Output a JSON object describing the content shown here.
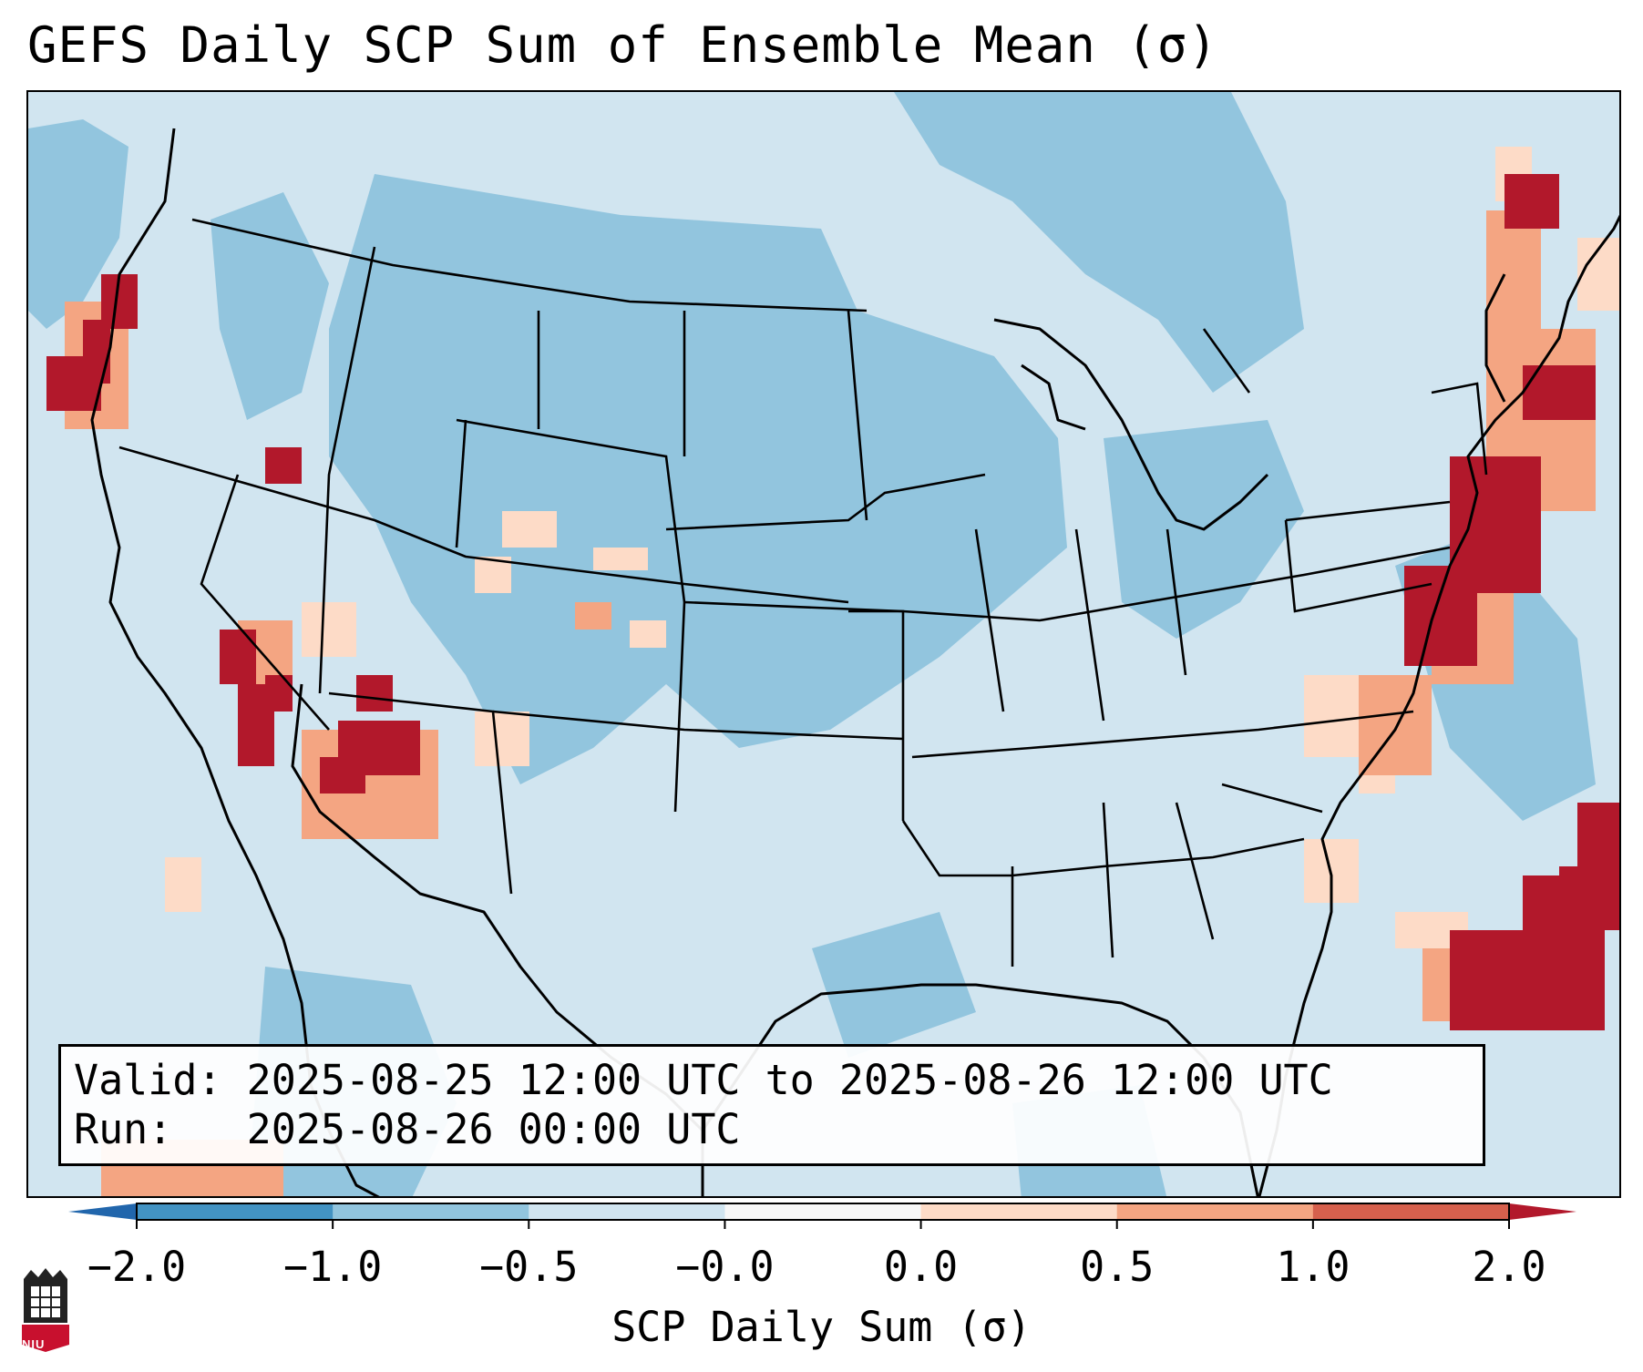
{
  "title": "GEFS Daily SCP Sum of Ensemble Mean (σ)",
  "valid_label": "Valid:",
  "valid_text": "2025-08-25 12:00 UTC to 2025-08-26 12:00 UTC",
  "run_label": "Run:",
  "run_text": "2025-08-26 00:00 UTC",
  "colorbar": {
    "label": "SCP Daily Sum (σ)",
    "ticks": [
      "−2.0",
      "−1.0",
      "−0.5",
      "−0.0",
      "0.0",
      "0.5",
      "1.0",
      "2.0"
    ],
    "colors": [
      "#4393c3",
      "#92c5de",
      "#d1e5f0",
      "#f7f7f7",
      "#fddbc7",
      "#f4a582",
      "#d6604d"
    ],
    "extend_low": "#2166ac",
    "extend_high": "#b2182b"
  },
  "map": {
    "background": "#d1e5f0",
    "coast_color": "#000000",
    "elevated_regions": [
      {
        "name": "west-coast-pacific",
        "level": "high"
      },
      {
        "name": "southwest-desert",
        "level": "high"
      },
      {
        "name": "great-basin",
        "level": "moderate"
      },
      {
        "name": "colorado-rockies",
        "level": "moderate"
      },
      {
        "name": "northeast-coast",
        "level": "high"
      },
      {
        "name": "western-atlantic",
        "level": "high"
      }
    ]
  },
  "logo": {
    "text": "NIU",
    "color": "#c8102e"
  }
}
